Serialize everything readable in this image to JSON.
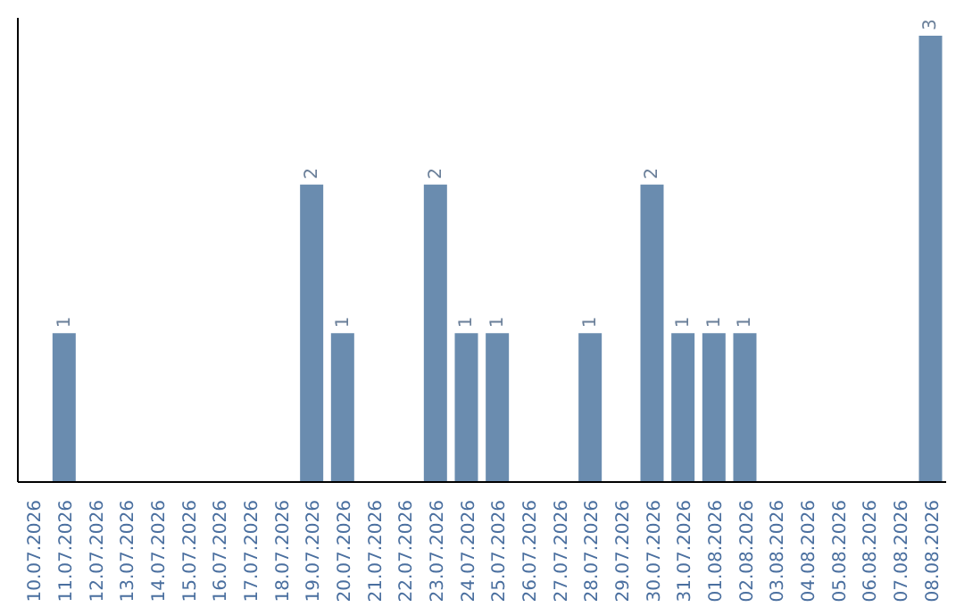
{
  "chart_data": {
    "type": "bar",
    "categories": [
      "10.07.2026",
      "11.07.2026",
      "12.07.2026",
      "13.07.2026",
      "14.07.2026",
      "15.07.2026",
      "16.07.2026",
      "17.07.2026",
      "18.07.2026",
      "19.07.2026",
      "20.07.2026",
      "21.07.2026",
      "22.07.2026",
      "23.07.2026",
      "24.07.2026",
      "25.07.2026",
      "26.07.2026",
      "27.07.2026",
      "28.07.2026",
      "29.07.2026",
      "30.07.2026",
      "31.07.2026",
      "01.08.2026",
      "02.08.2026",
      "03.08.2026",
      "04.08.2026",
      "05.08.2026",
      "06.08.2026",
      "07.08.2026",
      "08.08.2026"
    ],
    "values": [
      0,
      1,
      0,
      0,
      0,
      0,
      0,
      0,
      0,
      2,
      1,
      0,
      0,
      2,
      1,
      1,
      0,
      0,
      1,
      0,
      2,
      1,
      1,
      1,
      0,
      0,
      0,
      0,
      0,
      3
    ],
    "value_labels": [
      null,
      "1",
      null,
      null,
      null,
      null,
      null,
      null,
      null,
      "2",
      "1",
      null,
      null,
      "2",
      "1",
      "1",
      null,
      null,
      "1",
      null,
      "2",
      "1",
      "1",
      "1",
      null,
      null,
      null,
      null,
      null,
      "3"
    ],
    "color": "#6a8caf",
    "tick_labels": "x"
  }
}
